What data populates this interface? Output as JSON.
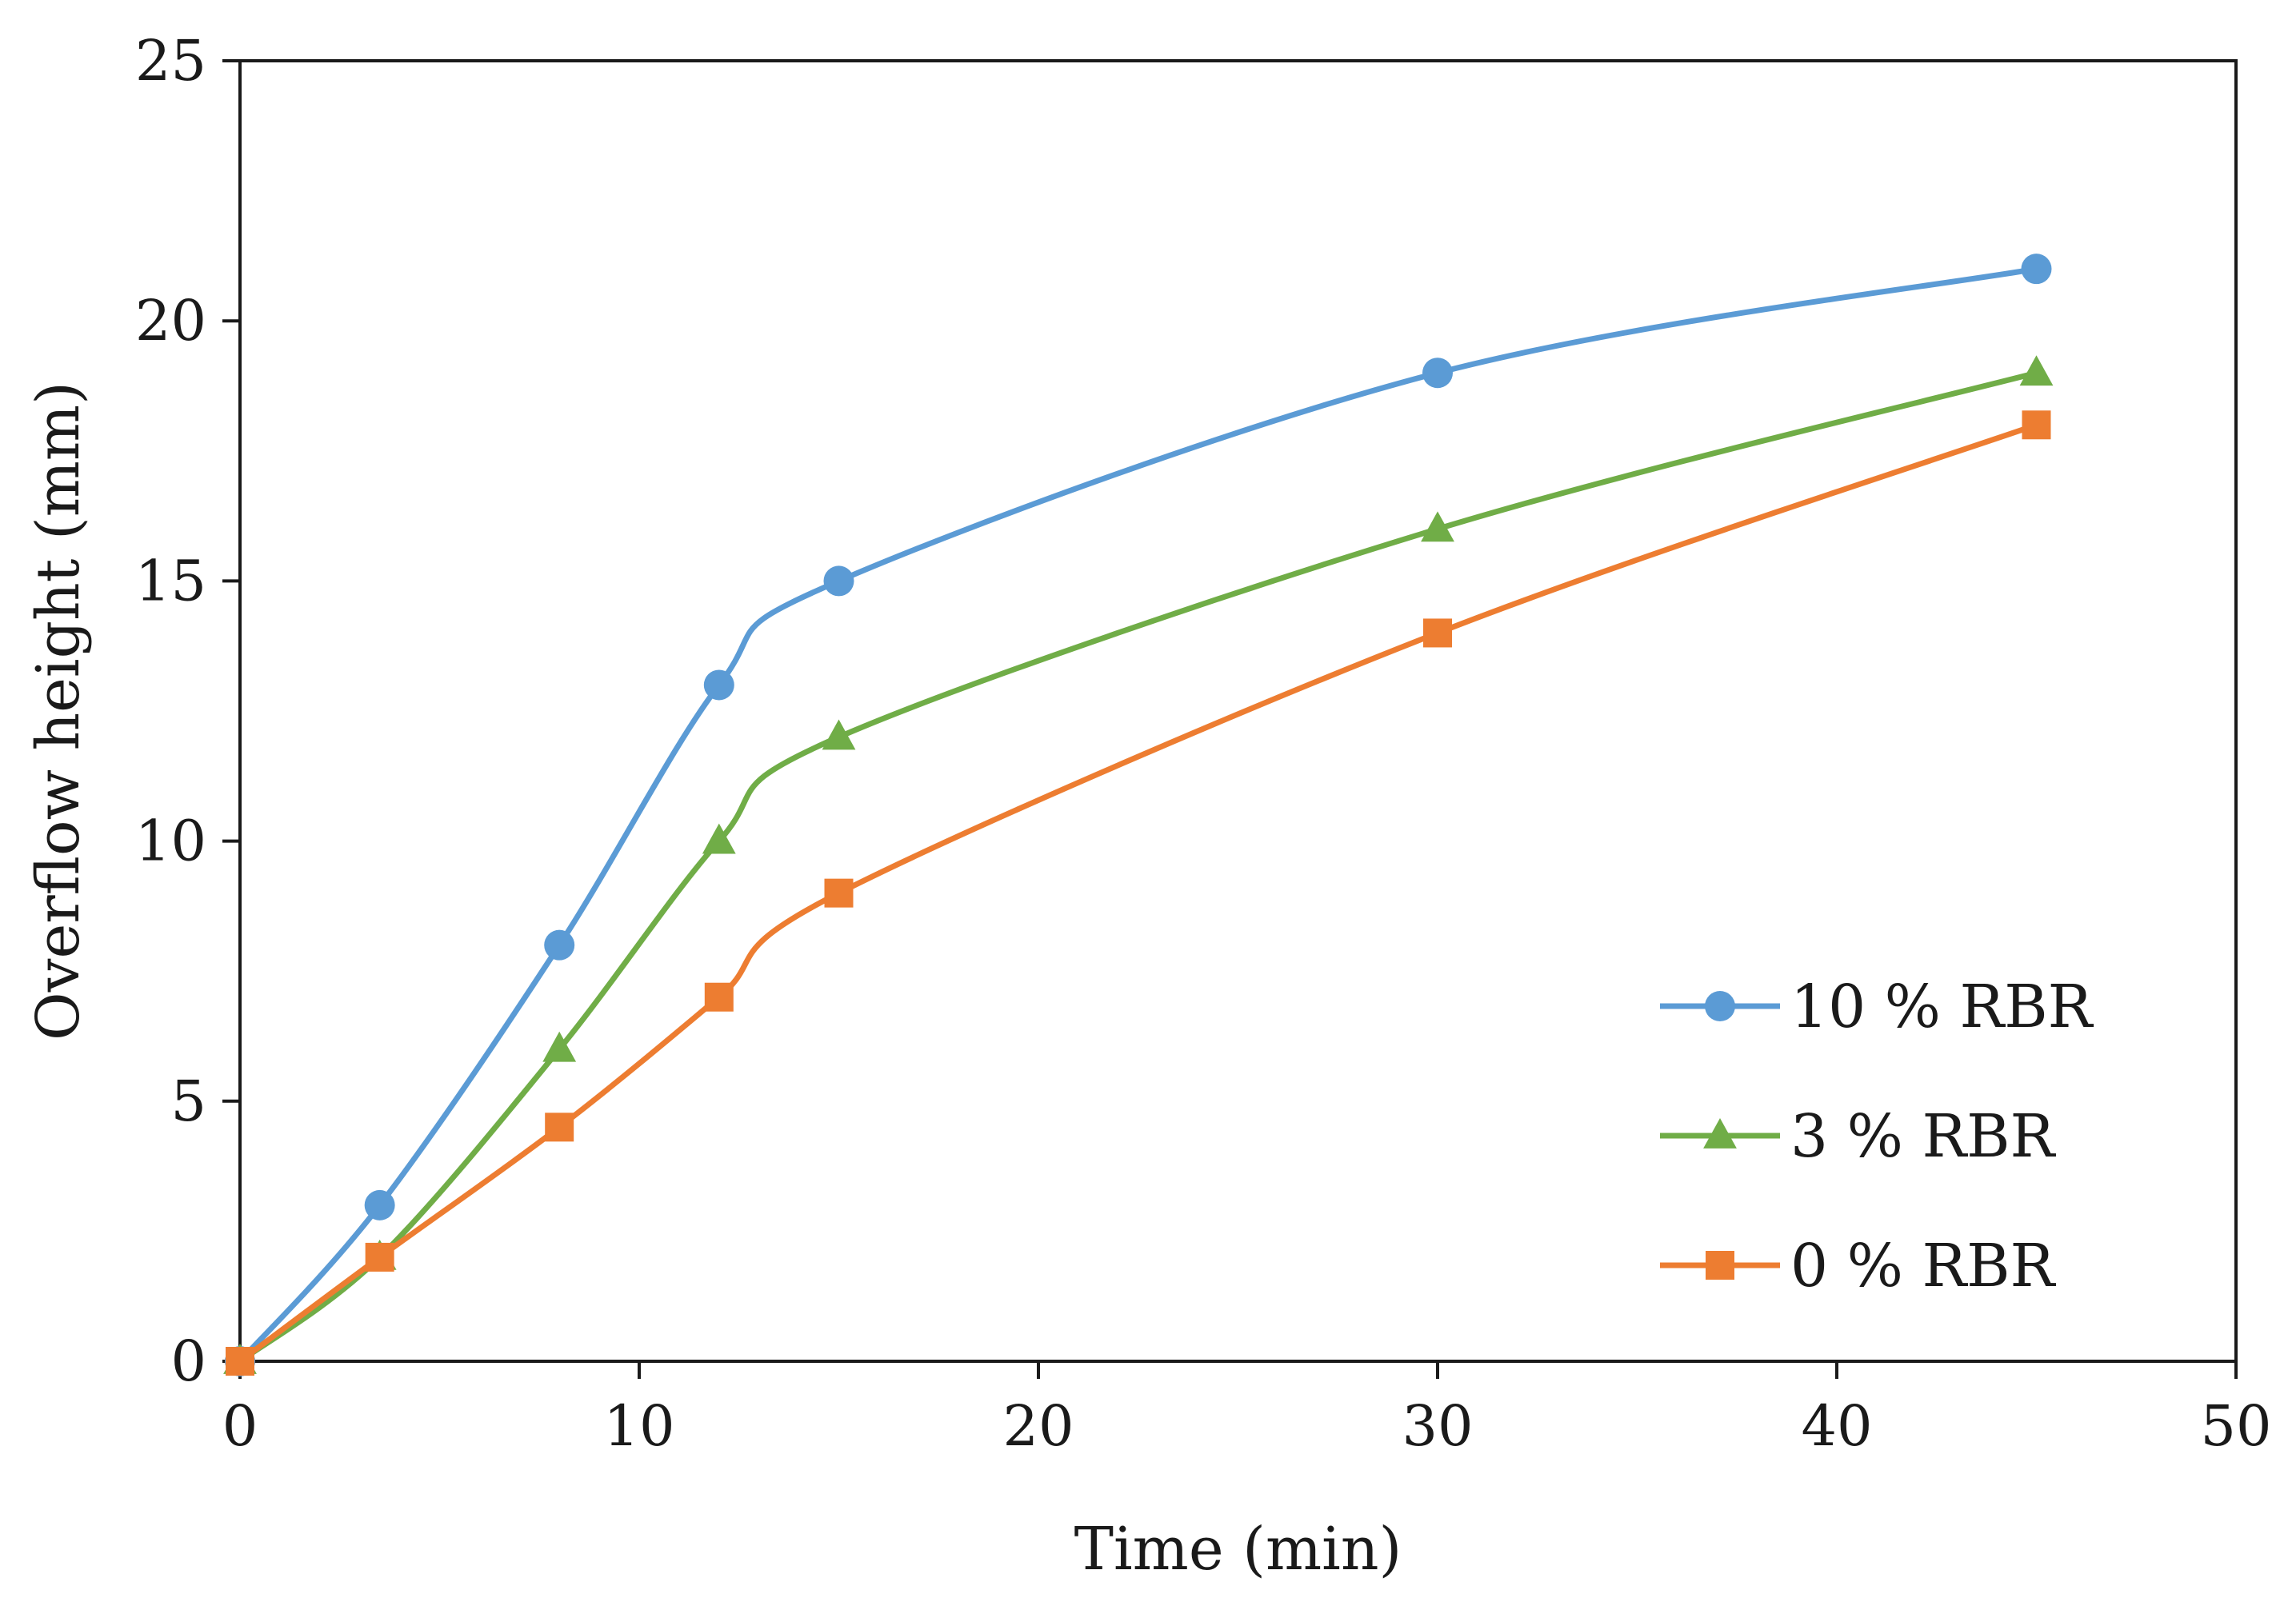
{
  "chart_data": {
    "type": "line",
    "title": "",
    "xlabel": "Time (min)",
    "ylabel": "Overflow height (mm)",
    "xlim": [
      0,
      50
    ],
    "ylim": [
      0,
      25
    ],
    "xticks": [
      0,
      10,
      20,
      30,
      40,
      50
    ],
    "yticks": [
      0,
      5,
      10,
      15,
      20,
      25
    ],
    "grid": false,
    "smooth": true,
    "legend_position": "right",
    "series": [
      {
        "name": "10 % RBR",
        "color": "#5B9BD5",
        "marker": "circle",
        "x": [
          0,
          3.5,
          8,
          12,
          15,
          30,
          45
        ],
        "y": [
          0,
          3,
          8,
          13,
          15,
          19,
          21
        ]
      },
      {
        "name": "3 % RBR",
        "color": "#70AD47",
        "marker": "triangle",
        "x": [
          0,
          3.5,
          8,
          12,
          15,
          30,
          45
        ],
        "y": [
          0,
          2,
          6,
          10,
          12,
          16,
          19
        ]
      },
      {
        "name": "0 % RBR",
        "color": "#ED7D31",
        "marker": "square",
        "x": [
          0,
          3.5,
          8,
          12,
          15,
          30,
          45
        ],
        "y": [
          0,
          2,
          4.5,
          7,
          9,
          14,
          18
        ]
      }
    ]
  }
}
